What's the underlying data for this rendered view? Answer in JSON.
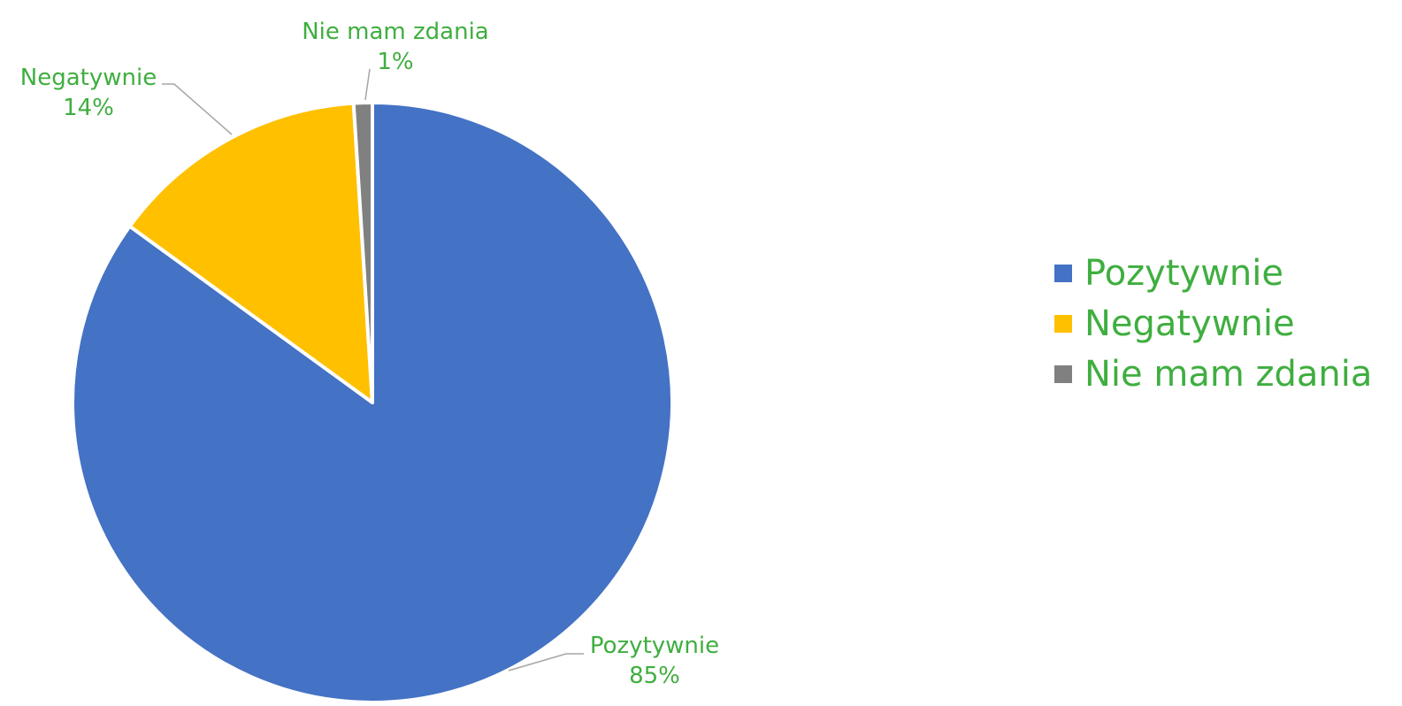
{
  "chart_data": {
    "type": "pie",
    "categories": [
      "Pozytywnie",
      "Negatywnie",
      "Nie mam zdania"
    ],
    "values": [
      85,
      14,
      1
    ],
    "data_labels": [
      "85%",
      "14%",
      "1%"
    ],
    "colors": [
      "#4472c4",
      "#ffc000",
      "#808080"
    ],
    "label_color": "#3fae3f",
    "start_angle_deg": 0,
    "direction": "clockwise",
    "legend": {
      "placement": "right",
      "entries": [
        "Pozytywnie",
        "Negatywnie",
        "Nie mam zdania"
      ]
    },
    "title": ""
  }
}
